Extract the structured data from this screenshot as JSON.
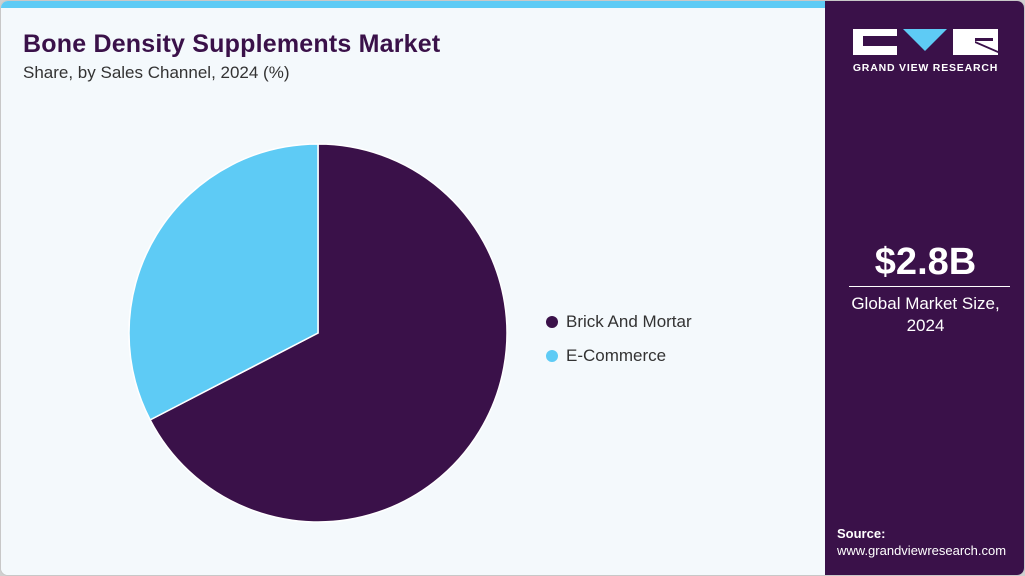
{
  "header": {
    "title": "Bone Density Supplements Market",
    "subtitle": "Share, by Sales Channel, 2024 (%)"
  },
  "colors": {
    "accent_bar": "#5ecbf5",
    "brand_dark": "#3a1149",
    "background": "#f4f9fc"
  },
  "legend": [
    {
      "label": "Brick And Mortar",
      "color": "#3a1149"
    },
    {
      "label": "E-Commerce",
      "color": "#5ecbf5"
    }
  ],
  "sidebar": {
    "logo_text": "GRAND VIEW RESEARCH",
    "market_value": "$2.8B",
    "market_label_line1": "Global Market Size,",
    "market_label_line2": "2024",
    "source_label": "Source:",
    "source_url": "www.grandviewresearch.com"
  },
  "chart_data": {
    "type": "pie",
    "title": "Bone Density Supplements Market",
    "subtitle": "Share, by Sales Channel, 2024 (%)",
    "categories": [
      "Brick And Mortar",
      "E-Commerce"
    ],
    "values": [
      67.4,
      32.6
    ],
    "colors": [
      "#3a1149",
      "#5ecbf5"
    ],
    "start_angle_deg": 0,
    "direction": "clockwise",
    "legend_position": "right",
    "data_labels": false
  }
}
